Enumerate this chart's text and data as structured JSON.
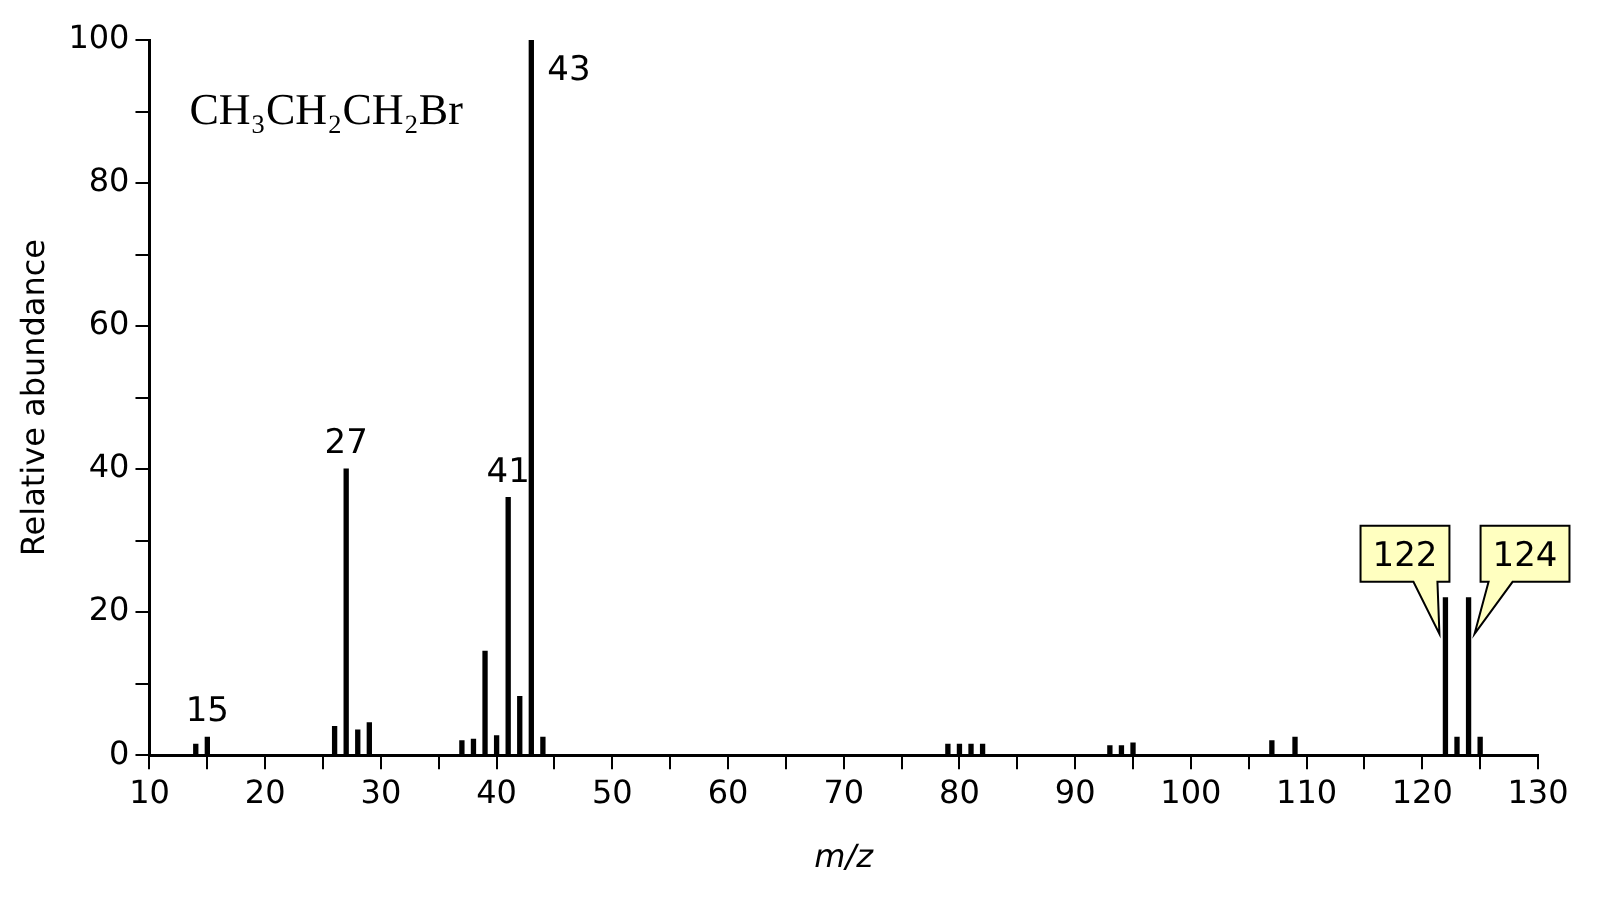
{
  "chart_data": {
    "type": "bar",
    "xlabel": "m/z",
    "ylabel": "Relative abundance",
    "x": [
      14,
      15,
      26,
      27,
      28,
      29,
      37,
      38,
      39,
      40,
      41,
      42,
      43,
      44,
      79,
      80,
      81,
      82,
      93,
      94,
      95,
      107,
      109,
      122,
      123,
      124,
      125
    ],
    "values": [
      1.5,
      2.5,
      4,
      40,
      3.5,
      4.5,
      2,
      2.2,
      14.5,
      2.7,
      36,
      8.2,
      100,
      2.5,
      1.5,
      1.5,
      1.5,
      1.5,
      1.3,
      1.3,
      1.7,
      2,
      2.5,
      22,
      2.5,
      22,
      2.5
    ],
    "color": "#000000",
    "xlim": [
      10,
      130
    ],
    "xticks": [
      10,
      {
        "value": 15,
        "label": null
      },
      20,
      {
        "value": 25,
        "label": null
      },
      30,
      {
        "value": 35,
        "label": null
      },
      40,
      {
        "value": 45,
        "label": null
      },
      50,
      {
        "value": 55,
        "label": null
      },
      60,
      {
        "value": 65,
        "label": null
      },
      70,
      {
        "value": 75,
        "label": null
      },
      80,
      {
        "value": 85,
        "label": null
      },
      90,
      {
        "value": 95,
        "label": null
      },
      100,
      {
        "value": 105,
        "label": null
      },
      110,
      {
        "value": 115,
        "label": null
      },
      120,
      {
        "value": 125,
        "label": null
      },
      130
    ],
    "ylim": [
      0,
      100
    ],
    "yticks": [
      0,
      {
        "value": 10,
        "label": null
      },
      20,
      {
        "value": 30,
        "label": null
      },
      40,
      {
        "value": 50,
        "label": null
      },
      60,
      {
        "value": 70,
        "label": null
      },
      80,
      {
        "value": 90,
        "label": null
      },
      100
    ],
    "annotations": [
      "CH₃CH₂CH₂Br",
      {
        "text": "15",
        "x": 15,
        "y": 2.5
      },
      {
        "text": "27",
        "x": 27,
        "y": 40
      },
      {
        "text": "41",
        "x": 41,
        "y": 36
      },
      {
        "text": "43",
        "x": 43,
        "y": 100
      },
      {
        "text": "122",
        "x": 122,
        "y": 22
      },
      {
        "text": "124",
        "x": 124,
        "y": 22
      }
    ],
    "grid": false,
    "legend": false
  }
}
